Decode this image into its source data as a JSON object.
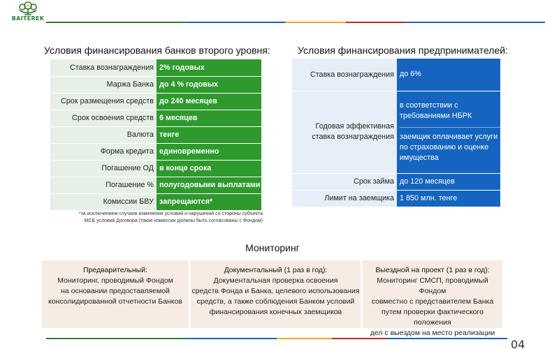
{
  "brand": {
    "logo_text": "BAITEREK",
    "colors": {
      "green": "#2e9a2e",
      "blue": "#1565c0",
      "yellow": "#f9a825",
      "red": "#c62828"
    }
  },
  "banks": {
    "title": "Условия финансирования банков второго уровня:",
    "rows": [
      {
        "label": "Ставка вознаграждения",
        "value": "2% годовых"
      },
      {
        "label": "Маржа Банка",
        "value": "до 4 % годовых"
      },
      {
        "label": "Срок размещения средств",
        "value": "до 240 месяцев"
      },
      {
        "label": "Срок освоения средств",
        "value": "6 месяцев"
      },
      {
        "label": "Валюта",
        "value": "тенге"
      },
      {
        "label": "Форма кредита",
        "value": "единовременно"
      },
      {
        "label": "Погашение ОД",
        "value": "в конце срока"
      },
      {
        "label": "Погашение %",
        "value": "полугодовыми выплатами"
      },
      {
        "label": "Комиссии БВУ",
        "value": "запрещаются*"
      }
    ],
    "footnote_line1": "*за исключением случаев изменения условий и нарушений со стороны субъекта",
    "footnote_line2": "МСБ условий Договора (такие комиссии должны быть согласованы с Фондом)"
  },
  "entrepreneurs": {
    "title": "Условия финансирования предпринимателей:",
    "rate_label": "Ставка вознаграждения",
    "rate_value": "до 6%",
    "eff_label_line1": "Годовая эффективная",
    "eff_label_line2": "ставка вознаграждения",
    "eff_value_a_line1": "в соответствии с",
    "eff_value_a_line2": "требованиями НБРК",
    "eff_value_b_line1": "заемщик оплачивает услуги",
    "eff_value_b_line2": "по страхованию и оценке",
    "eff_value_b_line3": "имущества",
    "term_label": "Срок займа",
    "term_value": "до 120 месяцев",
    "limit_label": "Лимит на заемщика",
    "limit_value": "1 850 млн. тенге"
  },
  "monitoring": {
    "title": "Мониторинг",
    "box1": {
      "heading": "Предварительный:",
      "line1": "Мониторинг, проводимый Фондом",
      "line2": "на основании предоставляемой",
      "line3": "консолидированной отчетности Банков"
    },
    "box2": {
      "heading": "Документальный  (1 раз в год):",
      "line1": "Документальная проверка освоения",
      "line2": "средств Фонда и Банка, целевого использования",
      "line3": "средств, а также соблюдения Банком  условий",
      "line4": "финансирования конечных заемщиков"
    },
    "box3": {
      "heading": "Выездной на проект (1 раз в год):",
      "line1": "Мониторинг СМСП, проводимый Фондом",
      "line2": "совместно с представителем Банка",
      "line3": "путем проверки фактического положения",
      "line4": "дел с выездом на место реализации"
    }
  },
  "page_number": "04"
}
